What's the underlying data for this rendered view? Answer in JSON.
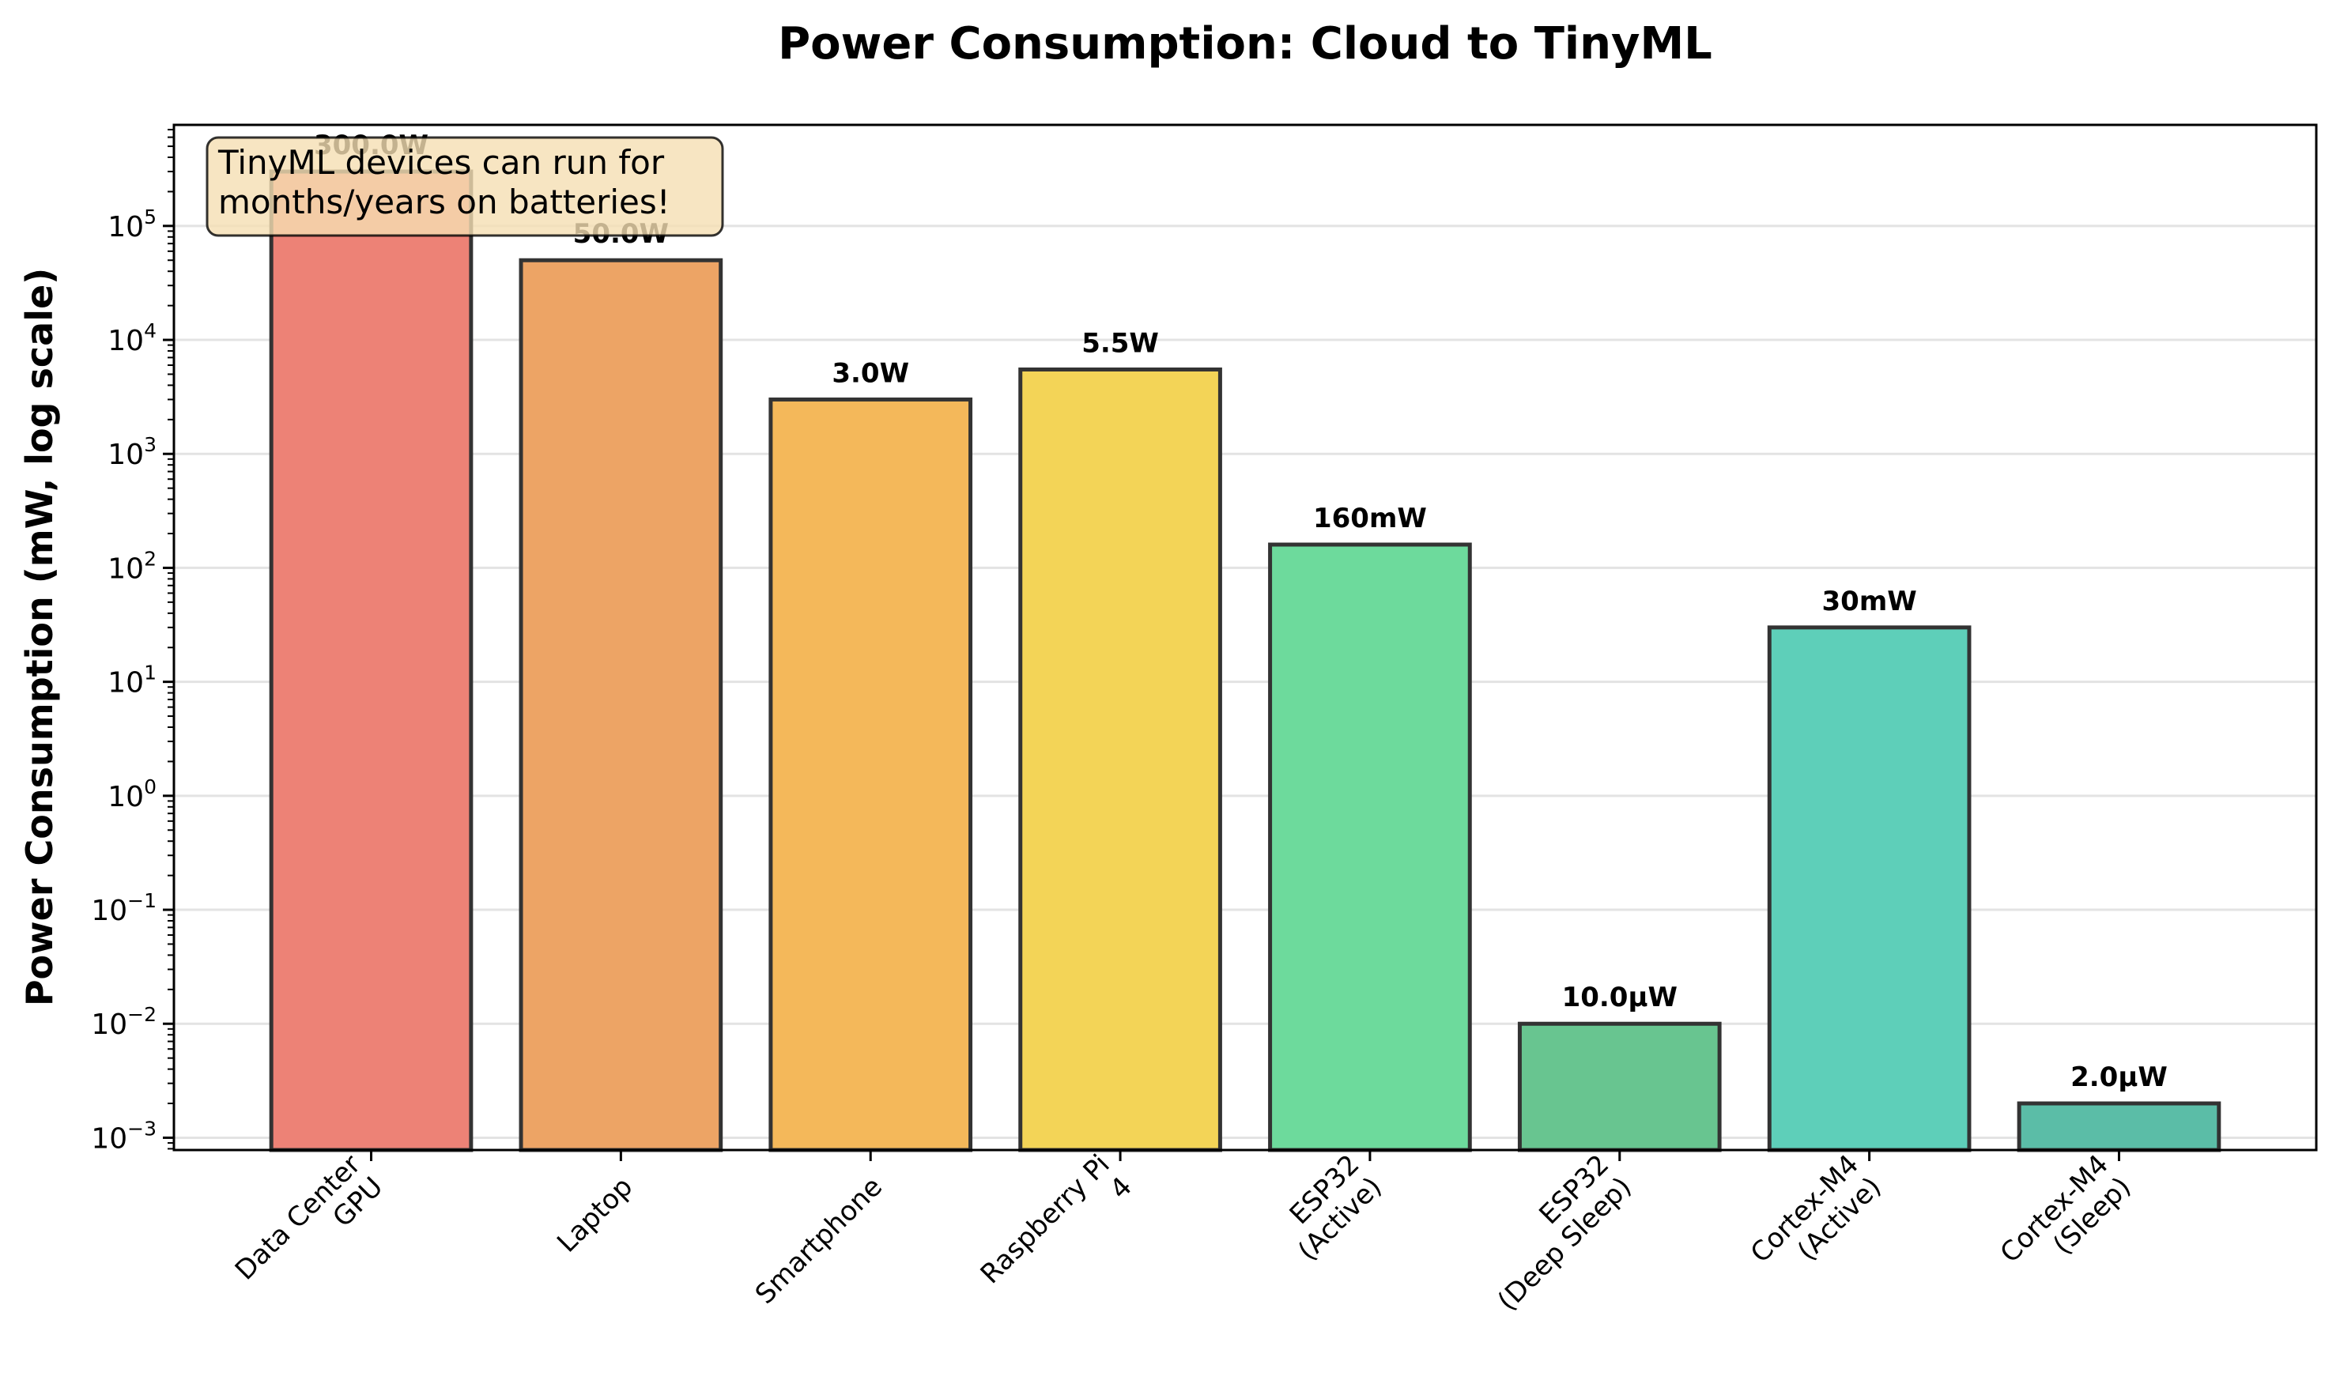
{
  "chart_data": {
    "type": "bar",
    "title": "Power Consumption: Cloud to TinyML",
    "xlabel": "",
    "ylabel": "Power Consumption (mW, log scale)",
    "yscale": "log",
    "ylim": [
      0.00078,
      770000
    ],
    "yticks": [
      {
        "base": "10",
        "exp": "−3",
        "value": 0.001
      },
      {
        "base": "10",
        "exp": "−2",
        "value": 0.01
      },
      {
        "base": "10",
        "exp": "−1",
        "value": 0.1
      },
      {
        "base": "10",
        "exp": "0",
        "value": 1
      },
      {
        "base": "10",
        "exp": "1",
        "value": 10
      },
      {
        "base": "10",
        "exp": "2",
        "value": 100
      },
      {
        "base": "10",
        "exp": "3",
        "value": 1000
      },
      {
        "base": "10",
        "exp": "4",
        "value": 10000
      },
      {
        "base": "10",
        "exp": "5",
        "value": 100000
      }
    ],
    "grid": "y-major",
    "categories": [
      [
        "Data Center",
        "GPU"
      ],
      [
        "Laptop"
      ],
      [
        "Smartphone"
      ],
      [
        "Raspberry Pi",
        "4"
      ],
      [
        "ESP32",
        "(Active)"
      ],
      [
        "ESP32",
        "(Deep Sleep)"
      ],
      [
        "Cortex-M4",
        "(Active)"
      ],
      [
        "Cortex-M4",
        "(Sleep)"
      ]
    ],
    "values": [
      300000,
      50000,
      3000,
      5500,
      160,
      0.01,
      30,
      0.002
    ],
    "value_labels": [
      "300.0W",
      "50.0W",
      "3.0W",
      "5.5W",
      "160mW",
      "10.0µW",
      "30mW",
      "2.0µW"
    ],
    "colors": [
      "#ed8276",
      "#eda465",
      "#f4b85a",
      "#f3d457",
      "#6dda9c",
      "#68c590",
      "#5ecfb9",
      "#5bbda7"
    ],
    "edge_color": "#333333",
    "annotation": {
      "lines": [
        "TinyML devices can run for",
        "months/years on batteries!"
      ],
      "placement": "top-left",
      "background": "#f5deb3"
    }
  }
}
